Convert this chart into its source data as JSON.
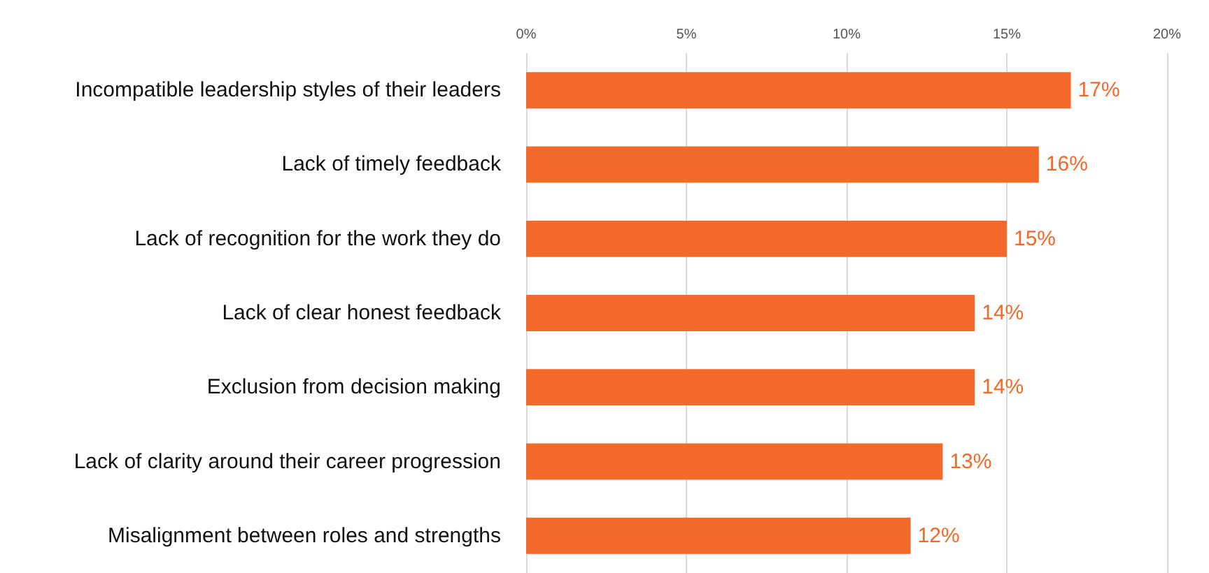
{
  "chart_data": {
    "type": "bar",
    "orientation": "horizontal",
    "categories": [
      "Incompatible leadership styles of their leaders",
      "Lack of timely feedback",
      "Lack of recognition for the work they do",
      "Lack of clear honest feedback",
      "Exclusion from decision making",
      "Lack of clarity around their career progression",
      "Misalignment between roles and strengths"
    ],
    "values": [
      17,
      16,
      15,
      14,
      14,
      13,
      12
    ],
    "value_labels": [
      "17%",
      "16%",
      "15%",
      "14%",
      "14%",
      "13%",
      "12%"
    ],
    "color": "#f26a2a",
    "xlim": [
      0,
      20
    ],
    "xticks": [
      {
        "value": 0,
        "label": "0%"
      },
      {
        "value": 5,
        "label": "5%"
      },
      {
        "value": 10,
        "label": "10%"
      },
      {
        "value": 15,
        "label": "15%"
      },
      {
        "value": 20,
        "label": "20%"
      }
    ],
    "grid": "x"
  }
}
